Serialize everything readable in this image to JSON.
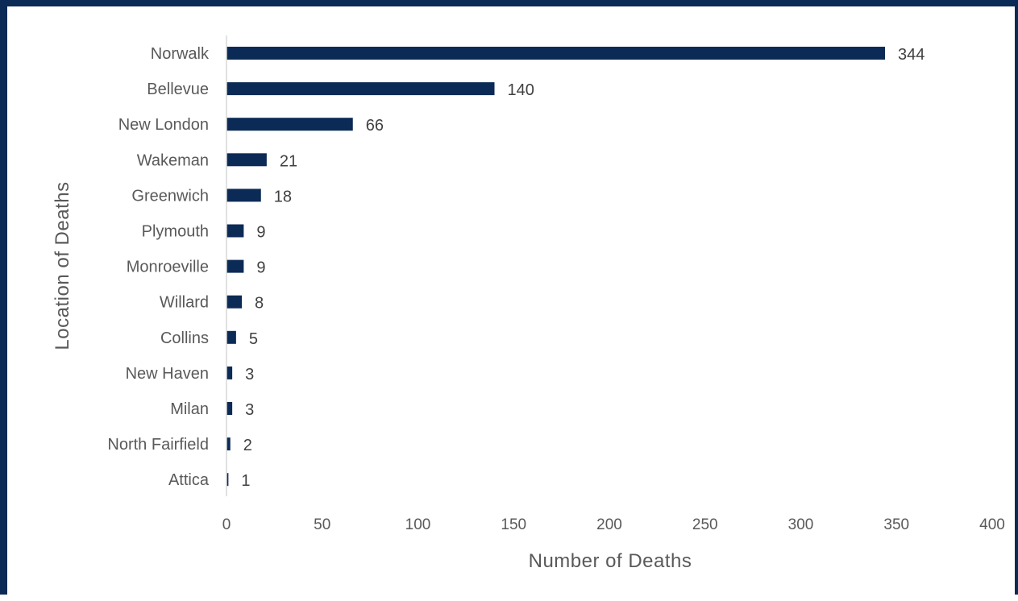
{
  "chart_data": {
    "type": "bar",
    "orientation": "horizontal",
    "title": "",
    "xlabel": "Number of Deaths",
    "ylabel": "Location of Deaths",
    "categories": [
      "Norwalk",
      "Bellevue",
      "New London",
      "Wakeman",
      "Greenwich",
      "Plymouth",
      "Monroeville",
      "Willard",
      "Collins",
      "New Haven",
      "Milan",
      "North Fairfield",
      "Attica"
    ],
    "values": [
      344,
      140,
      66,
      21,
      18,
      9,
      9,
      8,
      5,
      3,
      3,
      2,
      1
    ],
    "xlim": [
      0,
      400
    ],
    "xticks": [
      0,
      50,
      100,
      150,
      200,
      250,
      300,
      350,
      400
    ],
    "grid": false,
    "legend": "none",
    "data_labels": true,
    "bar_color": "#0b2a55"
  },
  "frame": {
    "border_color": "#0b2a55"
  }
}
